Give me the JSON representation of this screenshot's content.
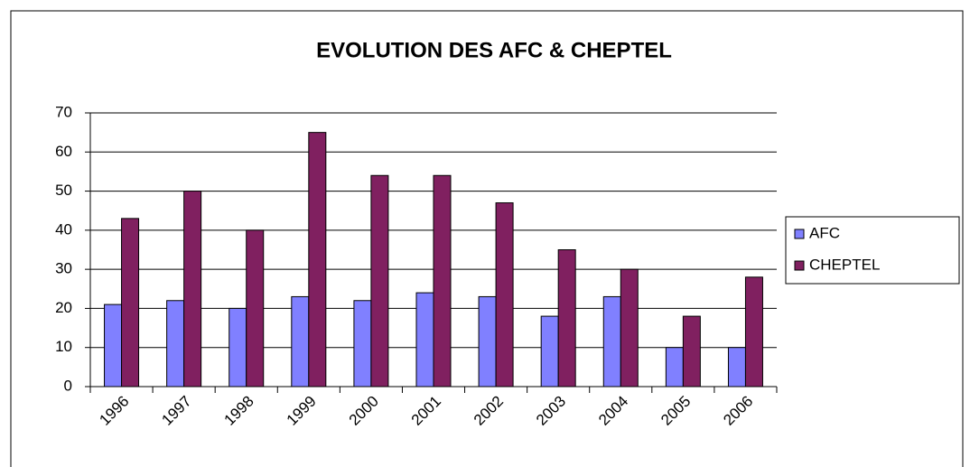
{
  "chart_data": {
    "type": "bar",
    "title": "EVOLUTION DES AFC & CHEPTEL",
    "categories": [
      "1996",
      "1997",
      "1998",
      "1999",
      "2000",
      "2001",
      "2002",
      "2003",
      "2004",
      "2005",
      "2006"
    ],
    "series": [
      {
        "name": "AFC",
        "color": "#8080ff",
        "values": [
          21,
          22,
          20,
          23,
          22,
          24,
          23,
          18,
          23,
          10,
          10
        ]
      },
      {
        "name": "CHEPTEL",
        "color": "#802060",
        "values": [
          43,
          50,
          40,
          65,
          54,
          54,
          47,
          35,
          30,
          18,
          28
        ]
      }
    ],
    "ylim": [
      0,
      70
    ],
    "yticks": [
      0,
      10,
      20,
      30,
      40,
      50,
      60,
      70
    ],
    "grid": true,
    "legend": "right"
  }
}
